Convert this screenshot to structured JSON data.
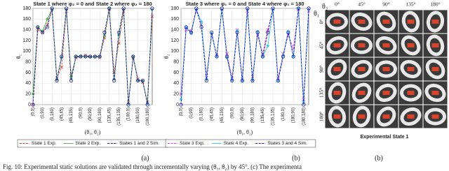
{
  "chart_data": [
    {
      "type": "line",
      "title": "State 1 where φ₂ = 0 and State 2 where φ₂ = 180",
      "x_label": "(θ₁, θ₂)",
      "y_label": "θ₁",
      "x": [
        0,
        1,
        2,
        3,
        4,
        5,
        6,
        7,
        8,
        9,
        10,
        11,
        12,
        13,
        14,
        15,
        16,
        17,
        18,
        19,
        20,
        21,
        22,
        23,
        24,
        25
      ],
      "xlim": [
        0,
        25
      ],
      "ylim": [
        0,
        180
      ],
      "yticks": [
        0,
        20,
        40,
        60,
        80,
        100,
        120,
        140,
        160,
        180
      ],
      "xticks": [
        {
          "value": 0,
          "label": "(0,0)"
        },
        {
          "value": 2,
          "label": "(0,90)"
        },
        {
          "value": 4,
          "label": "(0,180)"
        },
        {
          "value": 6,
          "label": "(45,45)"
        },
        {
          "value": 8,
          "label": "(45,135)"
        },
        {
          "value": 10,
          "label": "(90,0)"
        },
        {
          "value": 12,
          "label": "(90,90)"
        },
        {
          "value": 14,
          "label": "(90,180)"
        },
        {
          "value": 16,
          "label": "(135,45)"
        },
        {
          "value": 18,
          "label": "(135,135)"
        },
        {
          "value": 20,
          "label": "(180,0)"
        },
        {
          "value": 22,
          "label": "(180,90)"
        },
        {
          "value": 24,
          "label": "(180,180)"
        }
      ],
      "grid": true,
      "legend": "bottom",
      "sub_label": "(a)",
      "series": [
        {
          "name": "State 1 Exp.",
          "color": "#d9473f",
          "dashed": true,
          "marker": "x",
          "values": [
            0,
            140,
            135,
            150,
            178,
            50,
            70,
            175,
            55,
            88,
            90,
            92,
            90,
            90,
            88,
            125,
            178,
            60,
            115,
            175,
            5,
            88,
            48,
            42,
            5,
            165
          ]
        },
        {
          "name": "State 2 Exp.",
          "color": "#4caf50",
          "dashed": false,
          "marker": "star",
          "values": [
            20,
            145,
            137,
            160,
            178,
            47,
            88,
            178,
            50,
            90,
            91,
            90,
            89,
            90,
            90,
            130,
            180,
            48,
            130,
            178,
            2,
            90,
            45,
            44,
            3,
            178
          ]
        },
        {
          "name": "States 1 and 2 Sim.",
          "color": "#1f1fa8",
          "dashed": true,
          "marker": "circle",
          "values": [
            0,
            145,
            135,
            145,
            180,
            45,
            90,
            180,
            45,
            90,
            90,
            90,
            90,
            90,
            90,
            135,
            180,
            45,
            135,
            180,
            0,
            90,
            45,
            45,
            0,
            180
          ]
        }
      ]
    },
    {
      "type": "line",
      "title": "State 3 where φ₁ = 0 and State 4 where φ₁ = 180",
      "x_label": "(θ₁, θ₂)",
      "y_label": "θ₂",
      "x": [
        0,
        1,
        2,
        3,
        4,
        5,
        6,
        7,
        8,
        9,
        10,
        11,
        12,
        13,
        14,
        15,
        16,
        17,
        18,
        19,
        20,
        21,
        22,
        23,
        24,
        25
      ],
      "xlim": [
        0,
        25
      ],
      "ylim": [
        0,
        180
      ],
      "yticks": [
        0,
        20,
        40,
        60,
        80,
        100,
        120,
        140,
        160,
        180
      ],
      "xticks": [
        {
          "value": 0,
          "label": "(0,0)"
        },
        {
          "value": 2,
          "label": "(0,90)"
        },
        {
          "value": 4,
          "label": "(0,180)"
        },
        {
          "value": 6,
          "label": "(45,45)"
        },
        {
          "value": 8,
          "label": "(45,135)"
        },
        {
          "value": 10,
          "label": "(90,0)"
        },
        {
          "value": 12,
          "label": "(90,90)"
        },
        {
          "value": 14,
          "label": "(90,180)"
        },
        {
          "value": 16,
          "label": "(135,45)"
        },
        {
          "value": 18,
          "label": "(135,135)"
        },
        {
          "value": 20,
          "label": "(180,0)"
        },
        {
          "value": 22,
          "label": "(180,90)"
        },
        {
          "value": 24,
          "label": "(180,180)"
        }
      ],
      "grid": true,
      "legend": "bottom",
      "sub_label": "(b)",
      "series": [
        {
          "name": "State 3 Exp.",
          "color": "#e040e0",
          "dashed": true,
          "marker": "x",
          "values": [
            20,
            140,
            138,
            175,
            150,
            55,
            130,
            92,
            178,
            95,
            50,
            140,
            48,
            175,
            52,
            130,
            95,
            140,
            178,
            50,
            95,
            130,
            105,
            178,
            10,
            175
          ]
        },
        {
          "name": "State 4 Exp.",
          "color": "#3fc3e6",
          "dashed": false,
          "marker": "star",
          "values": [
            10,
            145,
            133,
            178,
            155,
            48,
            133,
            90,
            178,
            88,
            46,
            138,
            44,
            178,
            46,
            137,
            90,
            110,
            178,
            45,
            92,
            137,
            90,
            180,
            5,
            178
          ]
        },
        {
          "name": "States 3 and 4 Sim.",
          "color": "#1f1fa8",
          "dashed": true,
          "marker": "circle",
          "values": [
            0,
            145,
            135,
            180,
            145,
            45,
            135,
            90,
            180,
            90,
            45,
            135,
            45,
            180,
            45,
            135,
            90,
            135,
            180,
            45,
            90,
            135,
            90,
            180,
            0,
            180
          ]
        }
      ]
    }
  ],
  "photo_grid": {
    "corner_col": "θ₂",
    "corner_row": "θ₁",
    "columns": [
      "0°",
      "45°",
      "90°",
      "135°",
      "180°"
    ],
    "rows": [
      "0°",
      "45°",
      "90°",
      "135°",
      "180°"
    ],
    "caption": "Experimental State 1",
    "sub_label": "(b)"
  },
  "figure_caption": "Fig. 10: Experimental static solutions are validated through incrementally varying (θ₁, θ₂) by 45°. (c) The experimenta"
}
